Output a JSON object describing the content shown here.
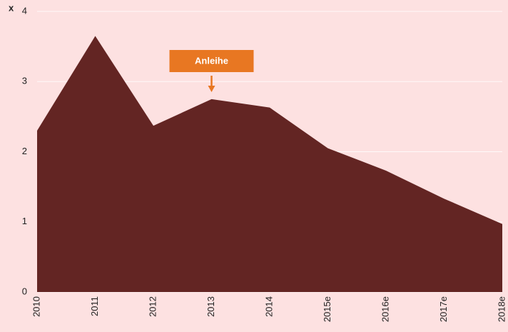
{
  "chart_data": {
    "type": "area",
    "ylabel": "x",
    "categories": [
      "2010",
      "2011",
      "2012",
      "2013",
      "2014",
      "2015e",
      "2016e",
      "2017e",
      "2018e"
    ],
    "values": [
      2.3,
      3.65,
      2.37,
      2.75,
      2.63,
      2.05,
      1.73,
      1.33,
      0.97
    ],
    "color": "#632523",
    "ylim": [
      0,
      4
    ],
    "yticks": [
      0,
      1,
      2,
      3,
      4
    ],
    "grid": true,
    "annotation": {
      "text": "Anleihe",
      "x": "2013",
      "color": "#e87722"
    }
  }
}
